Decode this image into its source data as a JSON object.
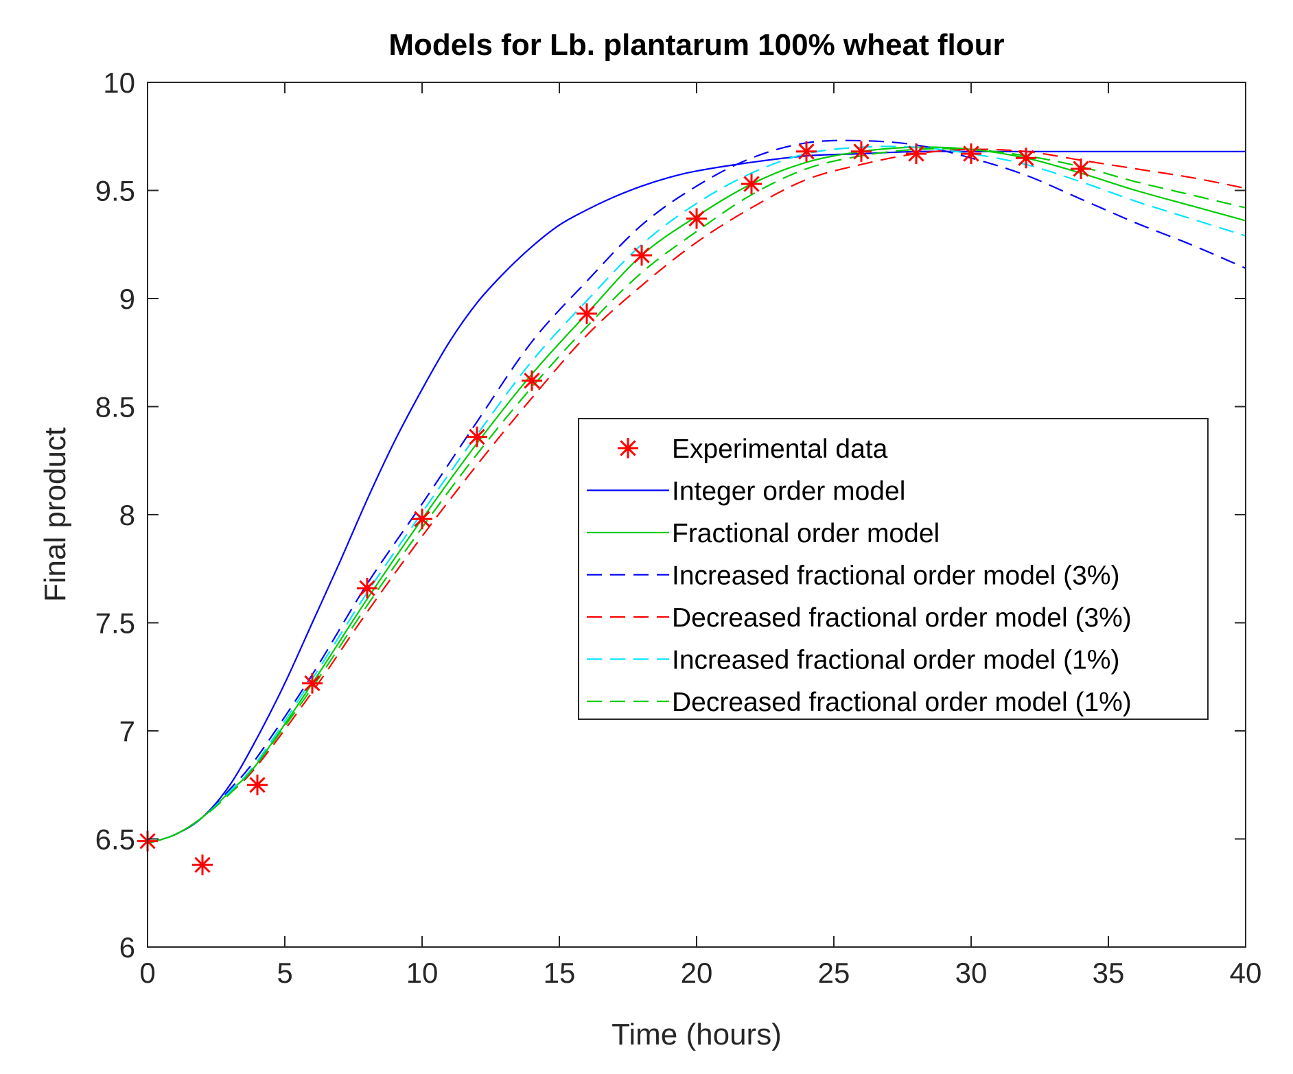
{
  "chart_data": {
    "type": "line",
    "title": "Models for Lb. plantarum 100% wheat flour",
    "xlabel": "Time (hours)",
    "ylabel": "Final product",
    "xlim": [
      0,
      40
    ],
    "ylim": [
      6,
      10
    ],
    "xticks": [
      0,
      5,
      10,
      15,
      20,
      25,
      30,
      35,
      40
    ],
    "yticks": [
      6,
      6.5,
      7,
      7.5,
      8,
      8.5,
      9,
      9.5,
      10
    ],
    "xtick_labels": [
      "0",
      "5",
      "10",
      "15",
      "20",
      "25",
      "30",
      "35",
      "40"
    ],
    "ytick_labels": [
      "6",
      "6.5",
      "7",
      "7.5",
      "8",
      "8.5",
      "9",
      "9.5",
      "10"
    ],
    "grid": false,
    "legend_position": "center-right",
    "series": [
      {
        "name": "Experimental data",
        "style": "marker",
        "marker": "asterisk",
        "color": "#ff0000",
        "x": [
          0,
          2,
          4,
          6,
          8,
          10,
          12,
          14,
          16,
          18,
          20,
          22,
          24,
          26,
          28,
          30,
          32,
          34
        ],
        "y": [
          6.49,
          6.38,
          6.75,
          7.22,
          7.66,
          7.98,
          8.36,
          8.62,
          8.93,
          9.2,
          9.37,
          9.53,
          9.68,
          9.68,
          9.67,
          9.67,
          9.65,
          9.6
        ]
      },
      {
        "name": "Integer order model",
        "style": "solid",
        "color": "#0000ff",
        "x": [
          0,
          1,
          2,
          3,
          4,
          5,
          6,
          7,
          8,
          9,
          10,
          11,
          12,
          13,
          14,
          15,
          16,
          17,
          18,
          19,
          20,
          22,
          24,
          26,
          28,
          30,
          34,
          40
        ],
        "y": [
          6.48,
          6.52,
          6.6,
          6.75,
          6.97,
          7.22,
          7.5,
          7.78,
          8.07,
          8.34,
          8.58,
          8.8,
          8.98,
          9.12,
          9.24,
          9.34,
          9.41,
          9.47,
          9.52,
          9.56,
          9.59,
          9.63,
          9.66,
          9.67,
          9.68,
          9.68,
          9.68,
          9.68
        ]
      },
      {
        "name": "Fractional order model",
        "style": "solid",
        "color": "#00cc00",
        "x": [
          0,
          1,
          2,
          3,
          4,
          6,
          8,
          10,
          12,
          14,
          16,
          18,
          20,
          22,
          24,
          26,
          28,
          30,
          32,
          34,
          36,
          38,
          40
        ],
        "y": [
          6.48,
          6.52,
          6.6,
          6.72,
          6.85,
          7.22,
          7.61,
          7.98,
          8.33,
          8.65,
          8.93,
          9.2,
          9.38,
          9.53,
          9.63,
          9.68,
          9.7,
          9.69,
          9.65,
          9.58,
          9.5,
          9.43,
          9.36
        ]
      },
      {
        "name": "Increased fractional order model (3%)",
        "style": "dashed",
        "color": "#0000ff",
        "x": [
          0,
          1,
          2,
          3,
          4,
          6,
          8,
          10,
          12,
          14,
          16,
          18,
          20,
          22,
          24,
          26,
          28,
          30,
          32,
          34,
          36,
          38,
          40
        ],
        "y": [
          6.48,
          6.52,
          6.6,
          6.73,
          6.88,
          7.26,
          7.68,
          8.05,
          8.43,
          8.8,
          9.08,
          9.34,
          9.52,
          9.65,
          9.72,
          9.73,
          9.71,
          9.65,
          9.57,
          9.46,
          9.35,
          9.25,
          9.14
        ]
      },
      {
        "name": "Decreased fractional order model (3%)",
        "style": "dashed",
        "color": "#ff0000",
        "x": [
          0,
          1,
          2,
          3,
          4,
          6,
          8,
          10,
          12,
          14,
          16,
          18,
          20,
          22,
          24,
          26,
          28,
          30,
          32,
          34,
          36,
          38,
          40
        ],
        "y": [
          6.48,
          6.52,
          6.6,
          6.71,
          6.84,
          7.18,
          7.55,
          7.9,
          8.23,
          8.54,
          8.83,
          9.06,
          9.26,
          9.42,
          9.55,
          9.62,
          9.67,
          9.69,
          9.68,
          9.64,
          9.6,
          9.56,
          9.51
        ]
      },
      {
        "name": "Increased fractional order model (1%)",
        "style": "dashed",
        "color": "#00e5ff",
        "x": [
          0,
          1,
          2,
          3,
          4,
          6,
          8,
          10,
          12,
          14,
          16,
          18,
          20,
          22,
          24,
          26,
          28,
          30,
          32,
          34,
          36,
          38,
          40
        ],
        "y": [
          6.48,
          6.52,
          6.6,
          6.72,
          6.86,
          7.24,
          7.64,
          8.01,
          8.37,
          8.71,
          8.99,
          9.25,
          9.44,
          9.58,
          9.67,
          9.7,
          9.7,
          9.67,
          9.62,
          9.54,
          9.45,
          9.37,
          9.29
        ]
      },
      {
        "name": "Decreased fractional order model (1%)",
        "style": "dashed",
        "color": "#00cc00",
        "x": [
          0,
          1,
          2,
          3,
          4,
          6,
          8,
          10,
          12,
          14,
          16,
          18,
          20,
          22,
          24,
          26,
          28,
          30,
          32,
          34,
          36,
          38,
          40
        ],
        "y": [
          6.48,
          6.52,
          6.6,
          6.71,
          6.85,
          7.2,
          7.58,
          7.94,
          8.28,
          8.59,
          8.87,
          9.12,
          9.31,
          9.48,
          9.6,
          9.66,
          9.69,
          9.69,
          9.66,
          9.61,
          9.54,
          9.48,
          9.42
        ]
      }
    ]
  }
}
